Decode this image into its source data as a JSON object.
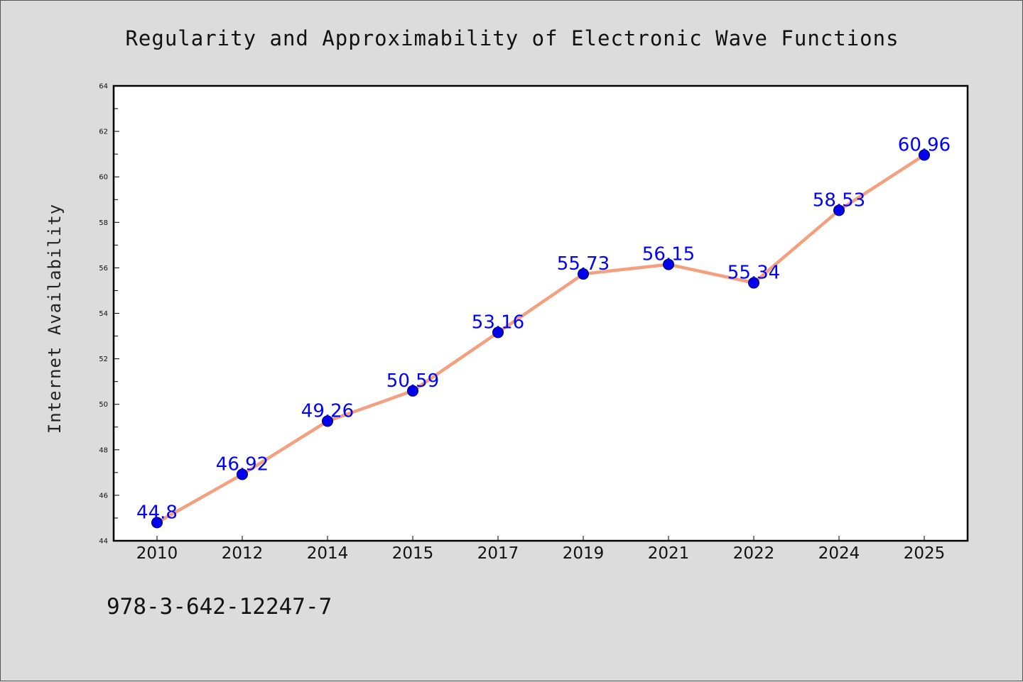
{
  "chart_data": {
    "type": "line",
    "title": "Regularity and Approximability of Electronic Wave Functions",
    "xlabel": "",
    "ylabel": "Internet Availability",
    "categories": [
      "2010",
      "2012",
      "2014",
      "2015",
      "2017",
      "2019",
      "2021",
      "2022",
      "2024",
      "2025"
    ],
    "series": [
      {
        "values": [
          44.8,
          46.92,
          49.26,
          50.59,
          53.16,
          55.73,
          56.15,
          55.34,
          58.53,
          60.96
        ],
        "data_labels": [
          "44.8",
          "46.92",
          "49.26",
          "50.59",
          "53.16",
          "55.73",
          "56.15",
          "55.34",
          "58.53",
          "60.96"
        ]
      }
    ],
    "ylim": [
      44,
      64
    ],
    "yticks": [
      "44",
      "46",
      "48",
      "50",
      "52",
      "54",
      "56",
      "58",
      "60",
      "62",
      "64"
    ],
    "grid": false,
    "legend": "none",
    "colors": {
      "line": "#f4a07e",
      "marker": "#0000ee",
      "marker_edge": "#00004a",
      "label": "#0000ff",
      "plot_bg": "#ffffff",
      "page_bg": "#dcdcdc"
    }
  },
  "footer": {
    "isbn": "978-3-642-12247-7"
  }
}
